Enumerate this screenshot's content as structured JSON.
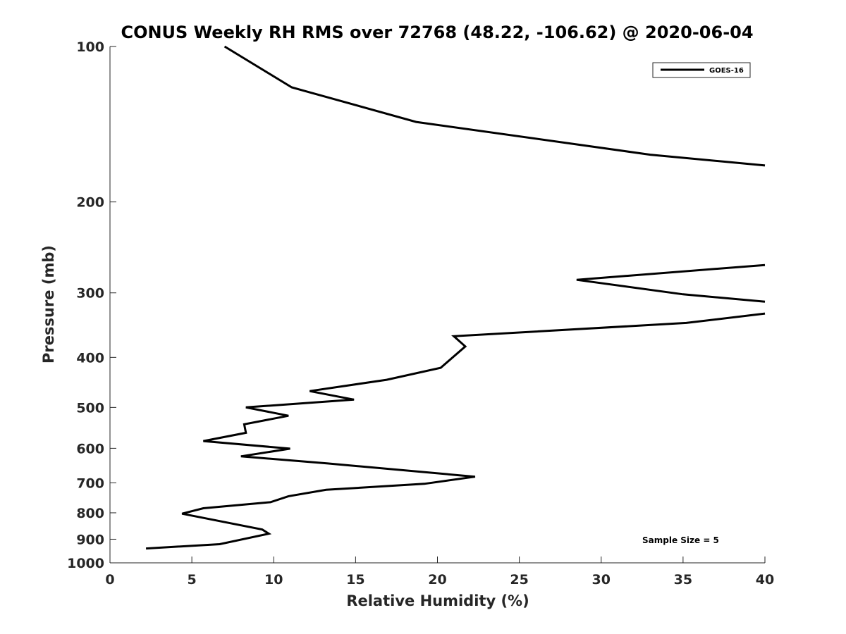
{
  "chart_data": {
    "type": "line",
    "title": "CONUS Weekly RH RMS over 72768 (48.22, -106.62) @ 2020-06-04",
    "xlabel": "Relative Humidity (%)",
    "ylabel": "Pressure (mb)",
    "xlim": [
      0,
      40
    ],
    "ylim": [
      1000,
      100
    ],
    "y_scale": "log",
    "y_reversed": true,
    "grid": false,
    "legend_position": "top-right",
    "x_ticks": [
      "0",
      "5",
      "10",
      "15",
      "20",
      "25",
      "30",
      "35",
      "40"
    ],
    "y_ticks": [
      "100",
      "200",
      "300",
      "400",
      "500",
      "600",
      "700",
      "800",
      "900",
      "1000"
    ],
    "annotation": "Sample Size = 5",
    "series": [
      {
        "name": "GOES-16",
        "color": "#000000",
        "points": [
          {
            "x": 7.0,
            "p": 100
          },
          {
            "x": 11.1,
            "p": 120
          },
          {
            "x": 18.7,
            "p": 140
          },
          {
            "x": 33.0,
            "p": 162
          },
          {
            "x": 40.0,
            "p": 170
          },
          {
            "x": null,
            "p": null
          },
          {
            "x": 40.0,
            "p": 265
          },
          {
            "x": 28.5,
            "p": 283
          },
          {
            "x": 35.0,
            "p": 302
          },
          {
            "x": 40.0,
            "p": 312
          },
          {
            "x": null,
            "p": null
          },
          {
            "x": 40.0,
            "p": 329
          },
          {
            "x": 35.2,
            "p": 343
          },
          {
            "x": 21.0,
            "p": 364
          },
          {
            "x": 21.7,
            "p": 381
          },
          {
            "x": 20.2,
            "p": 419
          },
          {
            "x": 16.9,
            "p": 442
          },
          {
            "x": 12.2,
            "p": 465
          },
          {
            "x": 14.9,
            "p": 483
          },
          {
            "x": 8.3,
            "p": 500
          },
          {
            "x": 10.9,
            "p": 519
          },
          {
            "x": 8.2,
            "p": 539
          },
          {
            "x": 8.3,
            "p": 560
          },
          {
            "x": 5.7,
            "p": 581
          },
          {
            "x": 11.0,
            "p": 601
          },
          {
            "x": 8.0,
            "p": 622
          },
          {
            "x": 13.3,
            "p": 642
          },
          {
            "x": 22.3,
            "p": 681
          },
          {
            "x": 19.2,
            "p": 703
          },
          {
            "x": 13.2,
            "p": 722
          },
          {
            "x": 10.9,
            "p": 743
          },
          {
            "x": 9.8,
            "p": 763
          },
          {
            "x": 5.7,
            "p": 784
          },
          {
            "x": 4.4,
            "p": 803
          },
          {
            "x": 9.3,
            "p": 862
          },
          {
            "x": 9.7,
            "p": 878
          },
          {
            "x": 6.7,
            "p": 920
          },
          {
            "x": 2.2,
            "p": 938
          }
        ]
      }
    ]
  }
}
